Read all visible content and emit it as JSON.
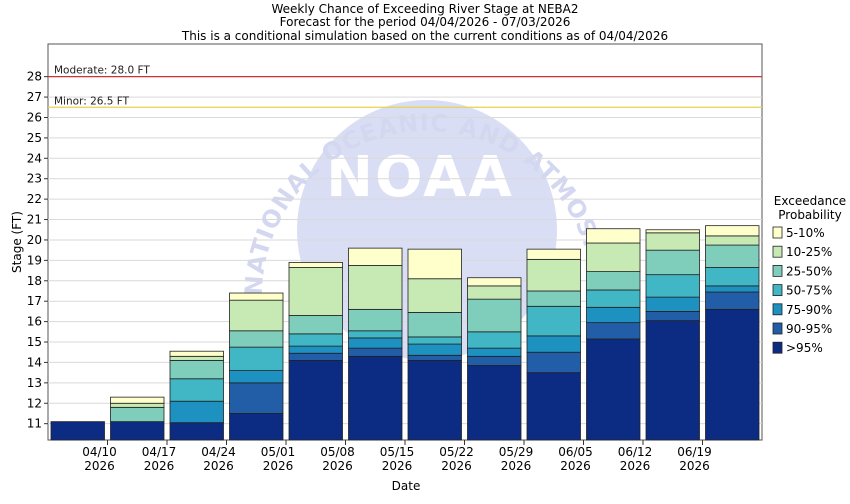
{
  "chart_data": {
    "type": "bar",
    "stacked": true,
    "title_lines": [
      "Weekly Chance of Exceeding River Stage at NEBA2",
      "Forecast for the period 04/04/2026 - 07/03/2026",
      "This is a conditional simulation based on the current conditions as of 04/04/2026"
    ],
    "xlabel": "Date",
    "ylabel": "Stage (FT)",
    "ylim": [
      10.2,
      29.6
    ],
    "yticks": [
      11,
      12,
      13,
      14,
      15,
      16,
      17,
      18,
      19,
      20,
      21,
      22,
      23,
      24,
      25,
      26,
      27,
      28
    ],
    "xticks": [
      {
        "date": "04/10",
        "year": "2026"
      },
      {
        "date": "04/17",
        "year": "2026"
      },
      {
        "date": "04/24",
        "year": "2026"
      },
      {
        "date": "05/01",
        "year": "2026"
      },
      {
        "date": "05/08",
        "year": "2026"
      },
      {
        "date": "05/15",
        "year": "2026"
      },
      {
        "date": "05/22",
        "year": "2026"
      },
      {
        "date": "05/29",
        "year": "2026"
      },
      {
        "date": "06/05",
        "year": "2026"
      },
      {
        "date": "06/12",
        "year": "2026"
      },
      {
        "date": "06/19",
        "year": "2026"
      }
    ],
    "thresholds": [
      {
        "label": "Moderate: 28.0 FT",
        "value": 28.0,
        "color": "#cc3333"
      },
      {
        "label": "Minor: 26.5 FT",
        "value": 26.5,
        "color": "#e8d24a"
      }
    ],
    "legend": {
      "title": [
        "Exceedance",
        "Probability"
      ],
      "placement": "right",
      "entries": [
        "5-10%",
        "10-25%",
        "25-50%",
        "50-75%",
        "75-90%",
        "90-95%",
        ">95%"
      ],
      "colors": [
        "#ffffcc",
        "#c7e9b4",
        "#7fcdbb",
        "#41b6c4",
        "#1d91c0",
        "#225ea8",
        "#0c2c84"
      ]
    },
    "bars": [
      {
        "week": 1,
        "bounds": [
          10.2,
          11.1
        ]
      },
      {
        "week": 2,
        "bounds": [
          10.2,
          11.1,
          11.1,
          11.1,
          11.1,
          11.8,
          12.0,
          12.3
        ]
      },
      {
        "week": 3,
        "bounds": [
          10.2,
          11.05,
          11.05,
          12.1,
          13.2,
          14.1,
          14.3,
          14.55
        ]
      },
      {
        "week": 4,
        "bounds": [
          10.2,
          11.5,
          13.0,
          13.6,
          14.75,
          15.55,
          17.05,
          17.4
        ]
      },
      {
        "week": 5,
        "bounds": [
          10.2,
          14.1,
          14.45,
          14.8,
          15.4,
          16.3,
          18.65,
          18.9
        ]
      },
      {
        "week": 6,
        "bounds": [
          10.2,
          14.3,
          14.7,
          15.2,
          15.55,
          16.6,
          18.75,
          19.6
        ]
      },
      {
        "week": 7,
        "bounds": [
          10.2,
          14.1,
          14.35,
          14.9,
          15.25,
          16.45,
          18.1,
          19.55
        ]
      },
      {
        "week": 8,
        "bounds": [
          10.2,
          13.85,
          14.3,
          14.7,
          15.5,
          17.1,
          17.75,
          18.15
        ]
      },
      {
        "week": 9,
        "bounds": [
          10.2,
          13.5,
          14.5,
          15.3,
          16.75,
          17.5,
          19.05,
          19.55
        ]
      },
      {
        "week": 10,
        "bounds": [
          10.2,
          15.15,
          15.95,
          16.7,
          17.55,
          18.45,
          19.85,
          20.55
        ]
      },
      {
        "week": 11,
        "bounds": [
          10.2,
          16.05,
          16.5,
          17.2,
          18.3,
          19.5,
          20.35,
          20.5
        ]
      },
      {
        "week": 12,
        "bounds": [
          10.2,
          16.6,
          17.45,
          17.75,
          18.65,
          19.75,
          20.2,
          20.7
        ]
      }
    ],
    "watermark": {
      "text": "NOAA",
      "ring_text": "NATIONAL OCEANIC AND ATMOSPHERIC ADMINISTRATION"
    }
  }
}
